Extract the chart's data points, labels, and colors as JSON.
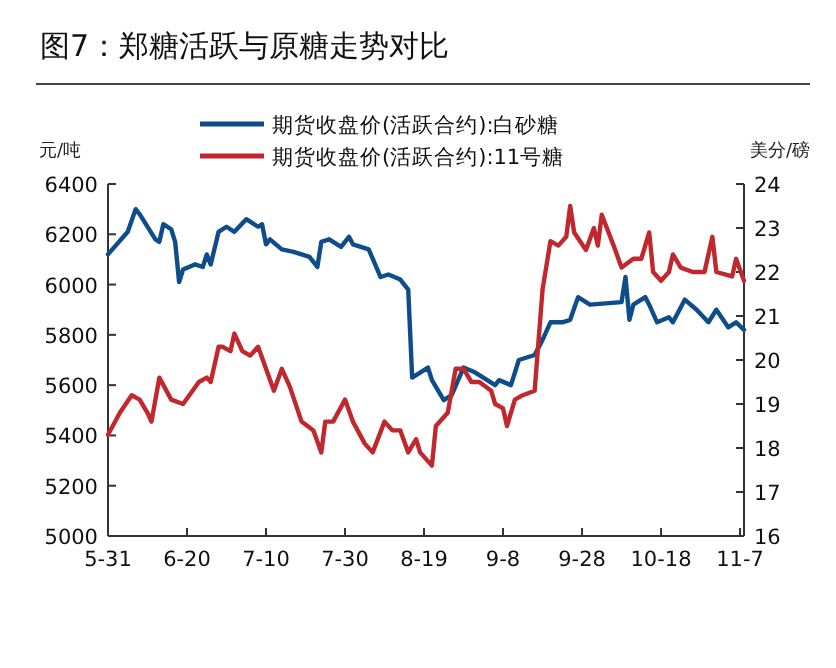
{
  "chart_data": {
    "type": "line",
    "title": "图7：郑糖活跃与原糖走势对比",
    "ylabel": "元/吨",
    "y2label": "美分/磅",
    "legend": "top",
    "xlim": [
      "--05-31",
      "--11-08"
    ],
    "xticks": [
      {
        "value": "--05-31",
        "label": "5-31"
      },
      {
        "value": "--06-20",
        "label": "6-20"
      },
      {
        "value": "--07-10",
        "label": "7-10"
      },
      {
        "value": "--07-30",
        "label": "7-30"
      },
      {
        "value": "--08-19",
        "label": "8-19"
      },
      {
        "value": "--09-08",
        "label": "9-8"
      },
      {
        "value": "--09-28",
        "label": "9-28"
      },
      {
        "value": "--10-18",
        "label": "10-18"
      },
      {
        "value": "--11-07",
        "label": "11-7"
      }
    ],
    "ylim": [
      5000,
      6400
    ],
    "yticks": [
      5000,
      5200,
      5400,
      5600,
      5800,
      6000,
      6200,
      6400
    ],
    "y2lim": [
      16,
      24
    ],
    "y2ticks": [
      16,
      17,
      18,
      19,
      20,
      21,
      22,
      23,
      24
    ],
    "series": [
      {
        "name": "期货收盘价(活跃合约):白砂糖",
        "color": "#0e4c8a",
        "x": [
          "--05-31",
          "--06-05",
          "--06-07",
          "--06-08",
          "--06-12",
          "--06-13",
          "--06-14",
          "--06-16",
          "--06-17",
          "--06-18",
          "--06-19",
          "--06-22",
          "--06-24",
          "--06-25",
          "--06-26",
          "--06-28",
          "--06-30",
          "--07-02",
          "--07-05",
          "--07-08",
          "--07-09",
          "--07-10",
          "--07-11",
          "--07-14",
          "--07-17",
          "--07-21",
          "--07-23",
          "--07-24",
          "--07-26",
          "--07-29",
          "--07-31",
          "--08-01",
          "--08-05",
          "--08-08",
          "--08-10",
          "--08-13",
          "--08-15",
          "--08-16",
          "--08-18",
          "--08-20",
          "--08-21",
          "--08-24",
          "--08-26",
          "--08-29",
          "--09-01",
          "--09-03",
          "--09-06",
          "--09-07",
          "--09-10",
          "--09-12",
          "--09-16",
          "--09-18",
          "--09-20",
          "--09-23",
          "--09-25",
          "--09-27",
          "--09-30",
          "--10-08",
          "--10-09",
          "--10-10",
          "--10-11",
          "--10-14",
          "--10-15",
          "--10-17",
          "--10-20",
          "--10-21",
          "--10-24",
          "--10-27",
          "--10-30",
          "--11-01",
          "--11-04",
          "--11-06",
          "--11-08"
        ],
        "values": [
          6120,
          6210,
          6300,
          6280,
          6180,
          6170,
          6240,
          6220,
          6170,
          6010,
          6060,
          6080,
          6070,
          6120,
          6080,
          6210,
          6230,
          6210,
          6260,
          6230,
          6240,
          6160,
          6180,
          6140,
          6130,
          6110,
          6070,
          6170,
          6180,
          6150,
          6190,
          6160,
          6140,
          6030,
          6040,
          6020,
          5980,
          5630,
          5650,
          5670,
          5620,
          5540,
          5560,
          5670,
          5650,
          5630,
          5600,
          5620,
          5600,
          5700,
          5720,
          5780,
          5850,
          5850,
          5860,
          5950,
          5920,
          5930,
          6030,
          5860,
          5920,
          5950,
          5920,
          5850,
          5870,
          5850,
          5940,
          5900,
          5850,
          5900,
          5830,
          5850,
          5820
        ]
      },
      {
        "name": "期货收盘价(活跃合约):11号糖",
        "color": "#c0282d",
        "axis": "y2",
        "x": [
          "--05-31",
          "--06-03",
          "--06-06",
          "--06-08",
          "--06-10",
          "--06-11",
          "--06-13",
          "--06-16",
          "--06-19",
          "--06-23",
          "--06-25",
          "--06-26",
          "--06-28",
          "--06-29",
          "--07-01",
          "--07-02",
          "--07-04",
          "--07-06",
          "--07-08",
          "--07-10",
          "--07-12",
          "--07-14",
          "--07-16",
          "--07-19",
          "--07-22",
          "--07-24",
          "--07-25",
          "--07-27",
          "--07-30",
          "--08-01",
          "--08-04",
          "--08-06",
          "--08-09",
          "--08-11",
          "--08-13",
          "--08-15",
          "--08-17",
          "--08-18",
          "--08-21",
          "--08-22",
          "--08-25",
          "--08-27",
          "--08-29",
          "--08-31",
          "--09-02",
          "--09-05",
          "--09-06",
          "--09-08",
          "--09-09",
          "--09-11",
          "--09-13",
          "--09-16",
          "--09-18",
          "--09-20",
          "--09-22",
          "--09-24",
          "--09-25",
          "--09-26",
          "--09-29",
          "--10-01",
          "--10-02",
          "--10-03",
          "--10-06",
          "--10-08",
          "--10-11",
          "--10-13",
          "--10-15",
          "--10-16",
          "--10-18",
          "--10-20",
          "--10-21",
          "--10-23",
          "--10-26",
          "--10-29",
          "--10-31",
          "--11-01",
          "--11-05",
          "--11-06",
          "--11-08"
        ],
        "values": [
          18.3,
          18.8,
          19.2,
          19.1,
          18.8,
          18.6,
          19.6,
          19.1,
          19.0,
          19.5,
          19.6,
          19.5,
          20.3,
          20.3,
          20.2,
          20.6,
          20.2,
          20.1,
          20.3,
          19.8,
          19.3,
          19.8,
          19.4,
          18.6,
          18.4,
          17.9,
          18.6,
          18.6,
          19.1,
          18.6,
          18.1,
          17.9,
          18.6,
          18.4,
          18.4,
          17.9,
          18.2,
          17.9,
          17.6,
          18.5,
          18.8,
          19.8,
          19.8,
          19.5,
          19.5,
          19.3,
          19.0,
          18.9,
          18.5,
          19.1,
          19.2,
          19.3,
          21.6,
          22.7,
          22.6,
          22.8,
          23.5,
          22.9,
          22.5,
          23.0,
          22.6,
          23.3,
          22.6,
          22.1,
          22.3,
          22.3,
          22.9,
          22.0,
          21.8,
          22.0,
          22.4,
          22.1,
          22.0,
          22.0,
          22.8,
          22.0,
          21.9,
          22.3,
          21.8
        ]
      }
    ]
  }
}
